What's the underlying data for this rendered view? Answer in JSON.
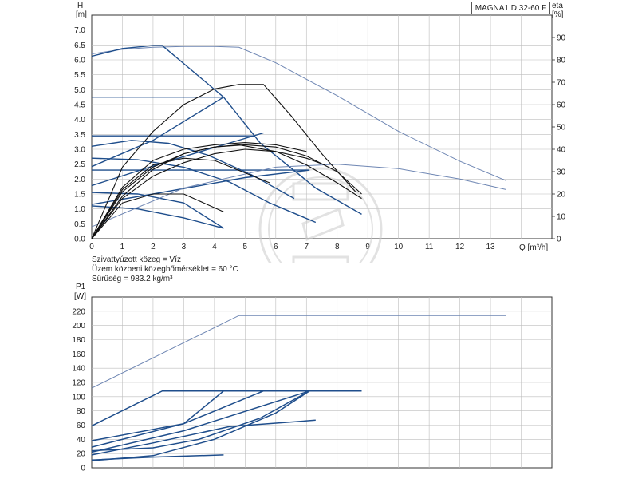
{
  "title": "MAGNA1 D 32-60 F",
  "fluid_info": {
    "line1": "Szivattyúzott közeg = Víz",
    "line2": "Üzem közbeni közeghőmérséklet = 60 °C",
    "line3": "Sűrűség = 983.2 kg/m³"
  },
  "colors": {
    "curve": "#1f4e8c",
    "curve_light": "#6e86b3",
    "eta": "#111111",
    "grid": "#bdbdbd",
    "axis": "#333333",
    "watermark": "#cccccc"
  },
  "chart_data": [
    {
      "type": "line",
      "ylabel_unit": "[m]",
      "ylabel": "H",
      "y2label": "eta",
      "y2label_unit": "[%]",
      "xlabel": "Q [m³/h]",
      "xlim": [
        0,
        15
      ],
      "ylim": [
        0,
        7.5
      ],
      "y2lim": [
        0,
        90
      ],
      "x_ticks": [
        "0",
        "1",
        "2",
        "3",
        "4",
        "5",
        "6",
        "7",
        "8",
        "9",
        "10",
        "11",
        "12",
        "13"
      ],
      "y_ticks": [
        "0.0",
        "0.5",
        "1.0",
        "1.5",
        "2.0",
        "2.5",
        "3.0",
        "3.5",
        "4.0",
        "4.5",
        "5.0",
        "5.5",
        "6.0",
        "6.5",
        "7.0"
      ],
      "y2_ticks": [
        "0",
        "10",
        "20",
        "30",
        "40",
        "50",
        "60",
        "70",
        "80",
        "90"
      ],
      "grid": true,
      "head_curves": [
        {
          "style": "light",
          "points": [
            [
              0,
              6.2
            ],
            [
              1,
              6.35
            ],
            [
              2,
              6.42
            ],
            [
              3,
              6.45
            ],
            [
              4,
              6.45
            ],
            [
              4.8,
              6.42
            ],
            [
              6,
              5.9
            ],
            [
              8,
              4.8
            ],
            [
              10,
              3.6
            ],
            [
              12,
              2.6
            ],
            [
              13.5,
              1.95
            ]
          ]
        },
        {
          "style": "dark",
          "points": [
            [
              0,
              6.12
            ],
            [
              1,
              6.38
            ],
            [
              2,
              6.48
            ],
            [
              2.3,
              6.48
            ],
            [
              4.3,
              4.75
            ],
            [
              5.5,
              3.2
            ],
            [
              7.3,
              1.7
            ],
            [
              8.8,
              0.82
            ]
          ]
        },
        {
          "style": "dark",
          "points": [
            [
              0,
              4.75
            ],
            [
              4.3,
              4.75
            ]
          ]
        },
        {
          "style": "dark",
          "points": [
            [
              0,
              3.45
            ],
            [
              5.3,
              3.45
            ]
          ]
        },
        {
          "style": "dark",
          "points": [
            [
              0,
              2.3
            ],
            [
              7.1,
              2.3
            ]
          ]
        },
        {
          "style": "dark",
          "points": [
            [
              0,
              2.42
            ],
            [
              2,
              3.3
            ],
            [
              4.3,
              4.75
            ]
          ]
        },
        {
          "style": "dark",
          "points": [
            [
              0,
              1.78
            ],
            [
              2.5,
              2.6
            ],
            [
              5.6,
              3.55
            ]
          ]
        },
        {
          "style": "dark",
          "points": [
            [
              0,
              3.1
            ],
            [
              1.3,
              3.3
            ],
            [
              2.5,
              3.2
            ],
            [
              3.8,
              2.8
            ],
            [
              5.2,
              2.15
            ],
            [
              6.6,
              1.35
            ]
          ]
        },
        {
          "style": "dark",
          "points": [
            [
              0,
              2.7
            ],
            [
              1.5,
              2.65
            ],
            [
              3,
              2.4
            ],
            [
              4.5,
              1.9
            ],
            [
              5.8,
              1.2
            ],
            [
              7.3,
              0.55
            ]
          ]
        },
        {
          "style": "dark",
          "points": [
            [
              0,
              1.15
            ],
            [
              2,
              1.5
            ],
            [
              5,
              2.05
            ],
            [
              7.1,
              2.3
            ]
          ]
        },
        {
          "style": "dark",
          "points": [
            [
              0,
              1.55
            ],
            [
              1.5,
              1.5
            ],
            [
              3,
              1.2
            ],
            [
              4.3,
              0.35
            ]
          ]
        },
        {
          "style": "dark",
          "points": [
            [
              0,
              1.1
            ],
            [
              1.5,
              1.0
            ],
            [
              3,
              0.7
            ],
            [
              4.3,
              0.35
            ]
          ]
        },
        {
          "style": "light",
          "points": [
            [
              0,
              0.4
            ],
            [
              3,
              1.7
            ],
            [
              6,
              2.4
            ],
            [
              8,
              2.5
            ],
            [
              10,
              2.35
            ],
            [
              12,
              2.0
            ],
            [
              13.5,
              1.65
            ]
          ]
        }
      ],
      "eta_curves": [
        {
          "points": [
            [
              0,
              0
            ],
            [
              1,
              19
            ],
            [
              2,
              31
            ],
            [
              3,
              38
            ],
            [
              4,
              41
            ],
            [
              5,
              42
            ],
            [
              6,
              41
            ],
            [
              7,
              37
            ],
            [
              8,
              30
            ],
            [
              8.8,
              20
            ]
          ]
        },
        {
          "points": [
            [
              0,
              0
            ],
            [
              1,
              21
            ],
            [
              2,
              32
            ],
            [
              3,
              38
            ],
            [
              4,
              41
            ],
            [
              4.8,
              42
            ],
            [
              6,
              39
            ],
            [
              7,
              33
            ],
            [
              8,
              25
            ],
            [
              8.8,
              18
            ]
          ]
        },
        {
          "points": [
            [
              0,
              0
            ],
            [
              1,
              18
            ],
            [
              2,
              28
            ],
            [
              3,
              34
            ],
            [
              4,
              38
            ],
            [
              5,
              40
            ],
            [
              6,
              39
            ],
            [
              7,
              36
            ],
            [
              7.6,
              33
            ]
          ]
        },
        {
          "points": [
            [
              0,
              0
            ],
            [
              1,
              23
            ],
            [
              2,
              35
            ],
            [
              3,
              40
            ],
            [
              4,
              42
            ],
            [
              5,
              43
            ],
            [
              6,
              42
            ],
            [
              7,
              39
            ]
          ]
        },
        {
          "points": [
            [
              0,
              0
            ],
            [
              1,
              32
            ],
            [
              2,
              48
            ],
            [
              3,
              60
            ],
            [
              4,
              67
            ],
            [
              4.8,
              69
            ],
            [
              5.6,
              69
            ],
            [
              6.5,
              55
            ],
            [
              7.5,
              38
            ],
            [
              8.6,
              21
            ]
          ]
        },
        {
          "points": [
            [
              0,
              0
            ],
            [
              1,
              22
            ],
            [
              2,
              33
            ],
            [
              3,
              36
            ],
            [
              4,
              35
            ],
            [
              5.8,
              25
            ]
          ]
        },
        {
          "points": [
            [
              0,
              0
            ],
            [
              1,
              16
            ],
            [
              2,
              20
            ],
            [
              3,
              20
            ],
            [
              4.3,
              12
            ]
          ]
        }
      ]
    },
    {
      "type": "line",
      "ylabel": "P1",
      "ylabel_unit": "[W]",
      "xlim": [
        0,
        15
      ],
      "ylim": [
        0,
        240
      ],
      "y_ticks": [
        "0",
        "20",
        "40",
        "60",
        "80",
        "100",
        "120",
        "140",
        "160",
        "180",
        "200",
        "220"
      ],
      "grid": true,
      "power_curves": [
        {
          "style": "light",
          "points": [
            [
              0,
              112
            ],
            [
              4.8,
              214
            ],
            [
              13.5,
              214
            ]
          ]
        },
        {
          "style": "dark",
          "points": [
            [
              0,
              59
            ],
            [
              2.3,
              108
            ],
            [
              8.8,
              108
            ]
          ]
        },
        {
          "style": "dark",
          "points": [
            [
              0,
              38
            ],
            [
              3,
              62
            ],
            [
              4.3,
              108
            ]
          ]
        },
        {
          "style": "dark",
          "points": [
            [
              0,
              29
            ],
            [
              3,
              62
            ],
            [
              5.6,
              108
            ]
          ]
        },
        {
          "style": "dark",
          "points": [
            [
              0,
              22
            ],
            [
              3,
              52
            ],
            [
              7.1,
              108
            ]
          ]
        },
        {
          "style": "dark",
          "points": [
            [
              0,
              18
            ],
            [
              2,
              35
            ],
            [
              4.5,
              58
            ],
            [
              7.3,
              67
            ]
          ]
        },
        {
          "style": "dark",
          "points": [
            [
              0,
              24
            ],
            [
              2,
              28
            ],
            [
              3.5,
              40
            ],
            [
              5.5,
              70
            ],
            [
              7.1,
              108
            ]
          ]
        },
        {
          "style": "dark",
          "points": [
            [
              0,
              10
            ],
            [
              2,
              17
            ],
            [
              4,
              40
            ],
            [
              6,
              77
            ],
            [
              7.1,
              108
            ]
          ]
        },
        {
          "style": "dark",
          "points": [
            [
              0,
              11
            ],
            [
              2,
              15
            ],
            [
              4.3,
              18
            ]
          ]
        }
      ]
    }
  ]
}
